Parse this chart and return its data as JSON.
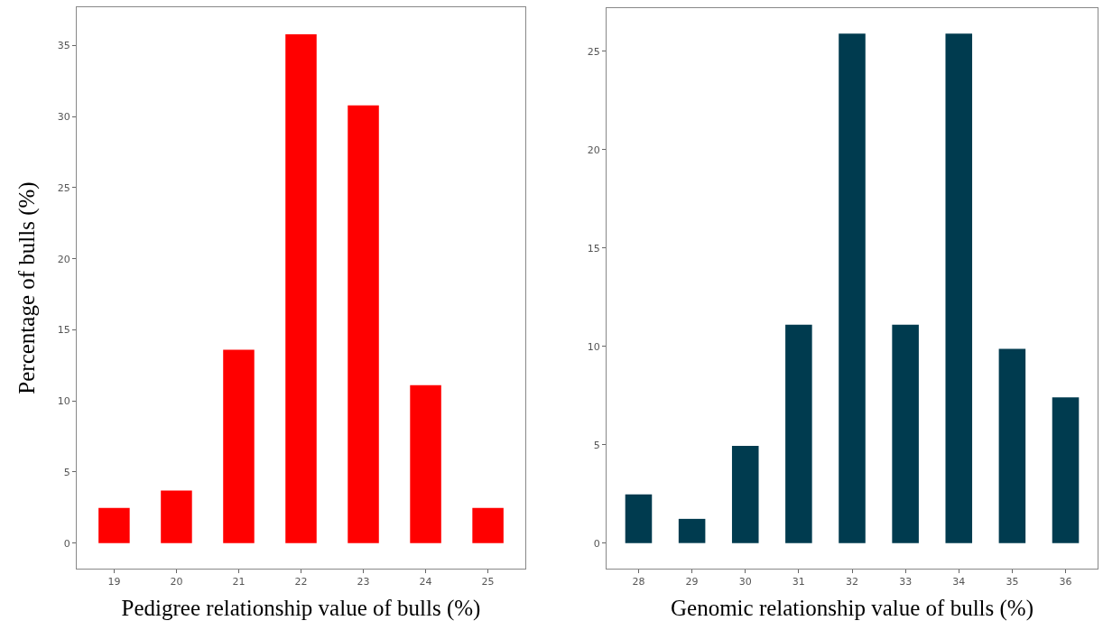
{
  "chart_data": [
    {
      "type": "bar",
      "xlabel": "Pedigree relationship value of bulls (%)",
      "ylabel": "Percentage of bulls (%)",
      "categories": [
        "19",
        "20",
        "21",
        "22",
        "23",
        "24",
        "25"
      ],
      "values": [
        2.47,
        3.7,
        13.6,
        35.8,
        30.8,
        11.1,
        2.47
      ],
      "color": "#ff0000",
      "ylim": [
        -1.8,
        37.7
      ],
      "yticks": [
        0,
        5,
        10,
        15,
        20,
        25,
        30,
        35
      ]
    },
    {
      "type": "bar",
      "xlabel": "Genomic relationship value of bulls (%)",
      "categories": [
        "28",
        "29",
        "30",
        "31",
        "32",
        "33",
        "34",
        "35",
        "36"
      ],
      "values": [
        2.47,
        1.23,
        4.94,
        11.1,
        25.9,
        11.1,
        25.9,
        9.88,
        7.41
      ],
      "color": "#003b4f",
      "ylim": [
        -1.3,
        27.2
      ],
      "yticks": [
        0,
        5,
        10,
        15,
        20,
        25
      ]
    }
  ]
}
